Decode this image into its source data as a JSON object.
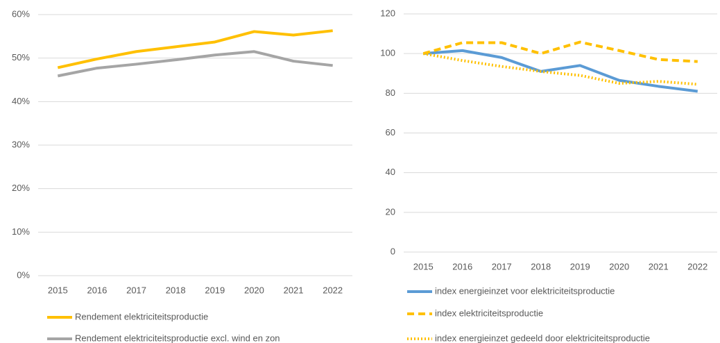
{
  "chart_data": [
    {
      "type": "line",
      "categories": [
        "2015",
        "2016",
        "2017",
        "2018",
        "2019",
        "2020",
        "2021",
        "2022"
      ],
      "series": [
        {
          "name": "Rendement elektriciteitsproductie",
          "color": "#ffc000",
          "line_style": "solid",
          "values": [
            47.8,
            49.8,
            51.5,
            52.6,
            53.7,
            56.1,
            55.3,
            56.3
          ]
        },
        {
          "name": "Rendement elektriciteitsproductie excl. wind en zon",
          "color": "#a5a5a5",
          "line_style": "solid",
          "values": [
            45.9,
            47.7,
            48.6,
            49.6,
            50.7,
            51.5,
            49.3,
            48.3
          ]
        }
      ],
      "ylim": [
        0,
        60
      ],
      "yticks": [
        {
          "value": 0,
          "label": "0%"
        },
        {
          "value": 10,
          "label": "10%"
        },
        {
          "value": 20,
          "label": "20%"
        },
        {
          "value": 30,
          "label": "30%"
        },
        {
          "value": 40,
          "label": "40%"
        },
        {
          "value": 50,
          "label": "50%"
        },
        {
          "value": 60,
          "label": "60%"
        }
      ],
      "grid": true,
      "legend": "bottom"
    },
    {
      "type": "line",
      "categories": [
        "2015",
        "2016",
        "2017",
        "2018",
        "2019",
        "2020",
        "2021",
        "2022"
      ],
      "series": [
        {
          "name": "index energieinzet voor elektriciteitsproductie",
          "color": "#5b9bd5",
          "line_style": "solid",
          "values": [
            100,
            101.5,
            98,
            91,
            94,
            86.5,
            83.5,
            81
          ]
        },
        {
          "name": "index elektriciteitsproductie",
          "color": "#ffc000",
          "line_style": "dashed",
          "values": [
            100,
            105.5,
            105.5,
            100,
            105.8,
            101.5,
            97,
            96
          ]
        },
        {
          "name": "index energieinzet gedeeld door elektriciteitsproductie",
          "color": "#ffc000",
          "line_style": "dotted",
          "values": [
            100,
            96.5,
            93.5,
            91,
            89,
            85,
            86,
            84.5
          ]
        }
      ],
      "ylim": [
        0,
        120
      ],
      "yticks": [
        0,
        20,
        40,
        60,
        80,
        100,
        120
      ],
      "grid": true,
      "legend": "bottom"
    }
  ]
}
